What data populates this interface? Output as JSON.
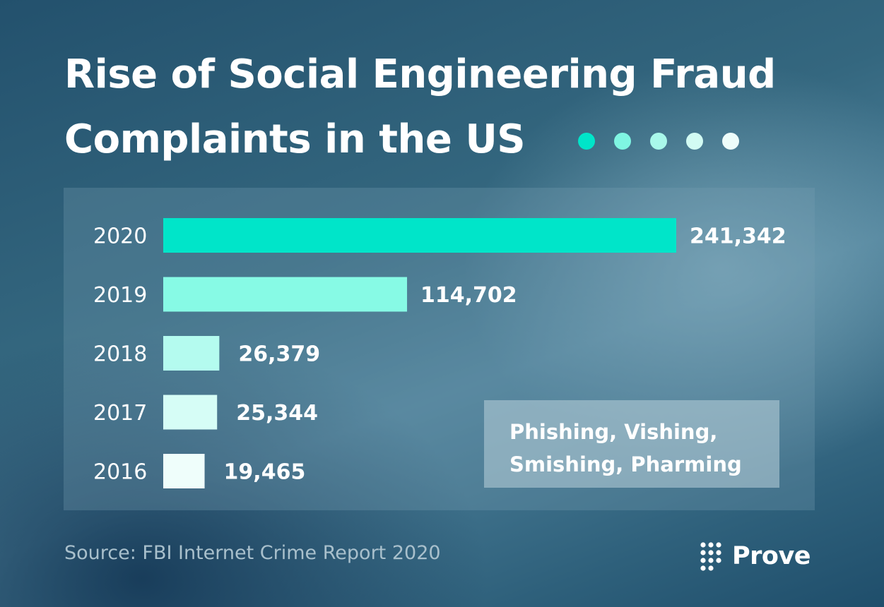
{
  "title": {
    "line1": "Rise of Social Engineering Fraud",
    "line2": "Complaints in the US"
  },
  "decoration": {
    "dot_colors": [
      "#00e5c9",
      "#7ff5e2",
      "#a9f8ea",
      "#d2fbf3",
      "#eefdfa"
    ]
  },
  "chart_data": {
    "type": "bar",
    "orientation": "horizontal",
    "categories": [
      "2020",
      "2019",
      "2018",
      "2017",
      "2016"
    ],
    "values": [
      241342,
      114702,
      26379,
      25344,
      19465
    ],
    "value_labels": [
      "241,342",
      "114,702",
      "26,379",
      "25,344",
      "19,465"
    ],
    "bar_colors": [
      "#00e5c9",
      "#87fae5",
      "#b4fbef",
      "#d6fdf6",
      "#effefb"
    ],
    "title": "Rise of Social Engineering Fraud Complaints in the US",
    "xlim": [
      0,
      241342
    ],
    "grid": false
  },
  "callout": {
    "line1": "Phishing, Vishing,",
    "line2": "Smishing, Pharming"
  },
  "source": "Source: FBI Internet Crime Report 2020",
  "logo": {
    "icon": "prove-dots-icon",
    "text": "Prove"
  }
}
